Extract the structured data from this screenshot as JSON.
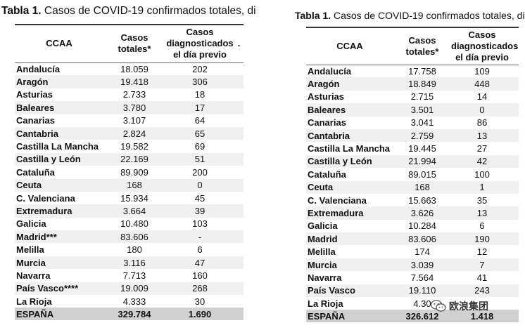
{
  "left": {
    "title_bold": "Tabla 1.",
    "title_rest": " Casos de COVID-19 confirmados totales, di",
    "headers": {
      "ccaa": "CCAA",
      "casos_totales": "Casos totales*",
      "diagnosticados": "Casos diagnosticados el día previo",
      "extra": "."
    },
    "rows": [
      {
        "name": "Andalucía",
        "total": "18.059",
        "prev": "202"
      },
      {
        "name": "Aragón",
        "total": "19.418",
        "prev": "306"
      },
      {
        "name": "Asturias",
        "total": "2.733",
        "prev": "18"
      },
      {
        "name": "Baleares",
        "total": "3.780",
        "prev": "17"
      },
      {
        "name": "Canarias",
        "total": "3.107",
        "prev": "64"
      },
      {
        "name": "Cantabria",
        "total": "2.824",
        "prev": "65"
      },
      {
        "name": "Castilla La Mancha",
        "total": "19.582",
        "prev": "69"
      },
      {
        "name": "Castilla y León",
        "total": "22.169",
        "prev": "51"
      },
      {
        "name": "Cataluña",
        "total": "89.909",
        "prev": "200"
      },
      {
        "name": "Ceuta",
        "total": "168",
        "prev": "0"
      },
      {
        "name": "C. Valenciana",
        "total": "15.934",
        "prev": "45"
      },
      {
        "name": "Extremadura",
        "total": "3.664",
        "prev": "39"
      },
      {
        "name": "Galicia",
        "total": "10.480",
        "prev": "103"
      },
      {
        "name": "Madrid***",
        "total": "83.606",
        "prev": "-"
      },
      {
        "name": "Melilla",
        "total": "180",
        "prev": "6"
      },
      {
        "name": "Murcia",
        "total": "3.116",
        "prev": "47"
      },
      {
        "name": "Navarra",
        "total": "7.713",
        "prev": "160"
      },
      {
        "name": "País Vasco****",
        "total": "19.009",
        "prev": "268"
      },
      {
        "name": "La Rioja",
        "total": "4.333",
        "prev": "30"
      }
    ],
    "total": {
      "name": "ESPAÑA",
      "total": "329.784",
      "prev": "1.690"
    }
  },
  "right": {
    "title_bold": "Tabla 1.",
    "title_rest": " Casos de COVID-19 confirmados totales, di",
    "headers": {
      "ccaa": "CCAA",
      "casos_totales": "Casos totales*",
      "diagnosticados": "Casos diagnosticados el día previo",
      "extra": "."
    },
    "rows": [
      {
        "name": "Andalucía",
        "total": "17.758",
        "prev": "109"
      },
      {
        "name": "Aragón",
        "total": "18.849",
        "prev": "448"
      },
      {
        "name": "Asturias",
        "total": "2.715",
        "prev": "14"
      },
      {
        "name": "Baleares",
        "total": "3.501",
        "prev": "0"
      },
      {
        "name": "Canarias",
        "total": "3.041",
        "prev": "86"
      },
      {
        "name": "Cantabria",
        "total": "2.759",
        "prev": "13"
      },
      {
        "name": "Castilla La Mancha",
        "total": "19.445",
        "prev": "27"
      },
      {
        "name": "Castilla y León",
        "total": "21.994",
        "prev": "42"
      },
      {
        "name": "Cataluña",
        "total": "89.015",
        "prev": "100"
      },
      {
        "name": "Ceuta",
        "total": "168",
        "prev": "1"
      },
      {
        "name": "C. Valenciana",
        "total": "15.663",
        "prev": "35"
      },
      {
        "name": "Extremadura",
        "total": "3.626",
        "prev": "13"
      },
      {
        "name": "Galicia",
        "total": "10.284",
        "prev": "6"
      },
      {
        "name": "Madrid",
        "total": "83.606",
        "prev": "190"
      },
      {
        "name": "Melilla",
        "total": "174",
        "prev": "12"
      },
      {
        "name": "Murcia",
        "total": "3.039",
        "prev": "7"
      },
      {
        "name": "Navarra",
        "total": "7.564",
        "prev": "41"
      },
      {
        "name": "País Vasco",
        "total": "19.110",
        "prev": "243"
      },
      {
        "name": "La Rioja",
        "total": "4.30",
        "prev": ""
      }
    ],
    "total": {
      "name": "ESPAÑA",
      "total": "326.612",
      "prev": "1.418"
    }
  },
  "watermark": {
    "text": "欧浪集团",
    "icon": "wechat-icon"
  }
}
